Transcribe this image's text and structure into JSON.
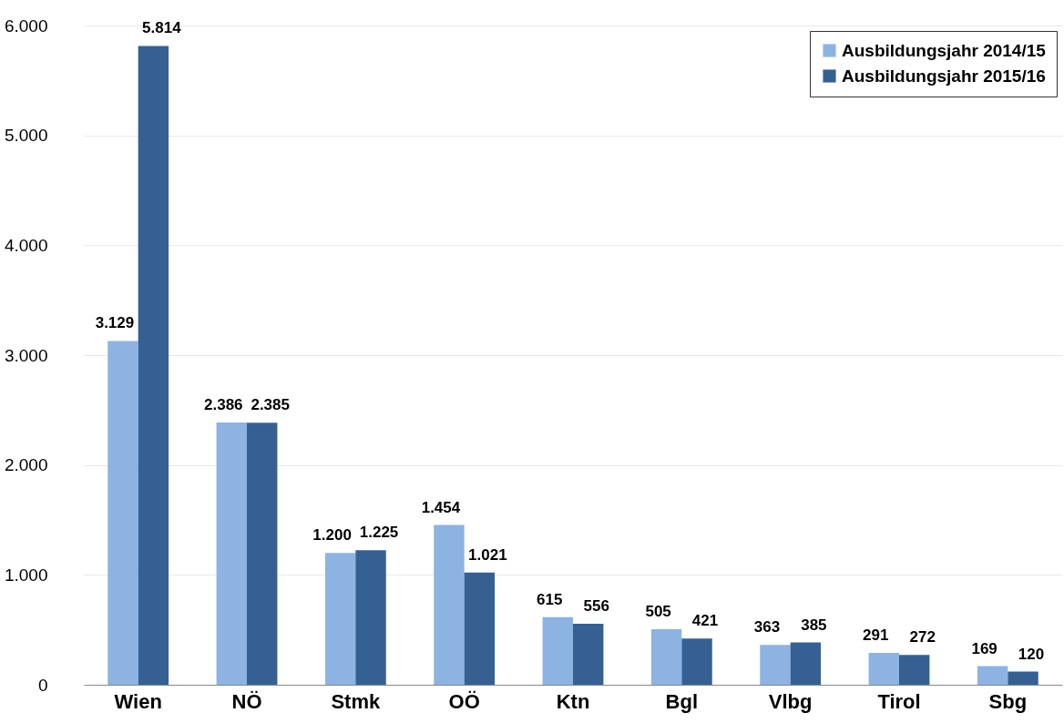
{
  "chart_data": {
    "type": "bar",
    "categories": [
      "Wien",
      "NÖ",
      "Stmk",
      "OÖ",
      "Ktn",
      "Bgl",
      "Vlbg",
      "Tirol",
      "Sbg"
    ],
    "series": [
      {
        "name": "Ausbildungsjahr 2014/15",
        "color": "#8db3e2",
        "values": [
          3129,
          2386,
          1200,
          1454,
          615,
          505,
          363,
          291,
          169
        ],
        "value_labels": [
          "3.129",
          "2.386",
          "1.200",
          "1.454",
          "615",
          "505",
          "363",
          "291",
          "169"
        ]
      },
      {
        "name": "Ausbildungsjahr 2015/16",
        "color": "#366092",
        "values": [
          5814,
          2385,
          1225,
          1021,
          556,
          421,
          385,
          272,
          120
        ],
        "value_labels": [
          "5.814",
          "2.385",
          "1.225",
          "1.021",
          "556",
          "421",
          "385",
          "272",
          "120"
        ]
      }
    ],
    "ylim": [
      0,
      6000
    ],
    "yticks": [
      0,
      {
        "value": 1000,
        "label": "1.000"
      },
      {
        "value": 2000,
        "label": "2.000"
      },
      {
        "value": 3000,
        "label": "3.000"
      },
      {
        "value": 4000,
        "label": "4.000"
      },
      {
        "value": 5000,
        "label": "5.000"
      },
      {
        "value": 6000,
        "label": "6.000"
      }
    ],
    "grid": "y",
    "legend": "top right"
  }
}
